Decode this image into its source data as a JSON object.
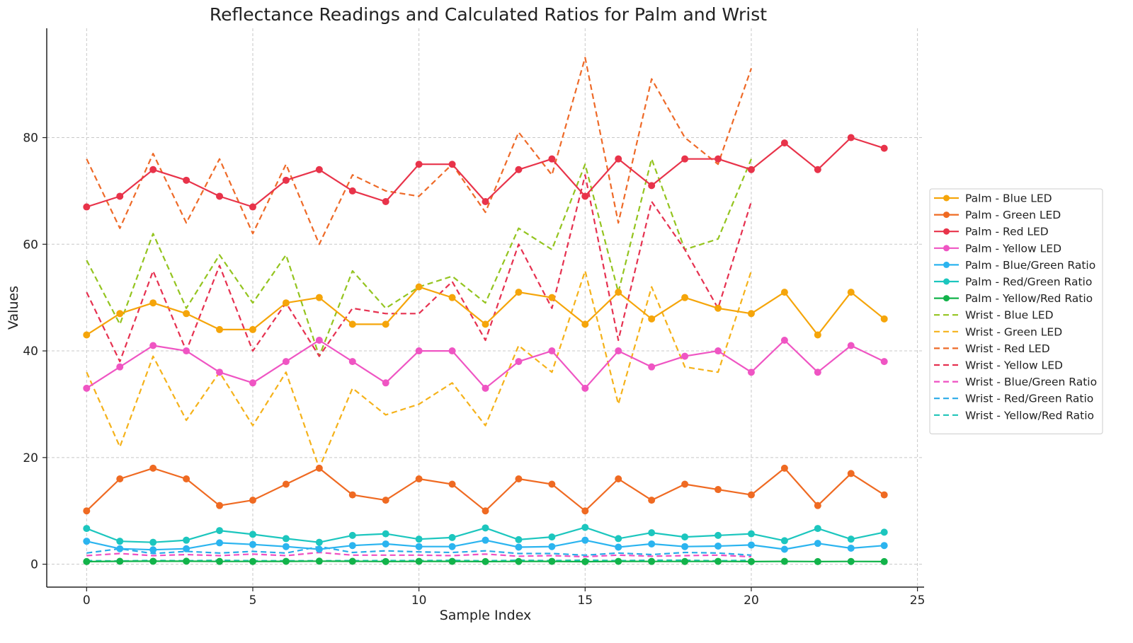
{
  "chart_data": {
    "type": "line",
    "title": "Reflectance Readings and Calculated Ratios for Palm and Wrist",
    "xlabel": "Sample Index",
    "ylabel": "Values",
    "xlim": [
      -1.2,
      25.2
    ],
    "ylim": [
      -4.3,
      100.5
    ],
    "xticks": [
      0,
      5,
      10,
      15,
      20,
      25
    ],
    "yticks": [
      0,
      20,
      40,
      60,
      80
    ],
    "grid": true,
    "legend_position": "right",
    "series": [
      {
        "name": "Palm - Blue LED",
        "style": "solid",
        "marker": true,
        "color": "#f5a50a",
        "values": [
          43,
          47,
          49,
          47,
          44,
          44,
          49,
          50,
          45,
          45,
          52,
          50,
          45,
          51,
          50,
          45,
          51,
          46,
          50,
          48,
          47,
          51,
          43,
          51,
          46
        ]
      },
      {
        "name": "Palm - Green LED",
        "style": "solid",
        "marker": true,
        "color": "#ef6a22",
        "values": [
          10,
          16,
          18,
          16,
          11,
          12,
          15,
          18,
          13,
          12,
          16,
          15,
          10,
          16,
          15,
          10,
          16,
          12,
          15,
          14,
          13,
          18,
          11,
          17,
          13
        ]
      },
      {
        "name": "Palm - Red LED",
        "style": "solid",
        "marker": true,
        "color": "#e8334a",
        "values": [
          67,
          69,
          74,
          72,
          69,
          67,
          72,
          74,
          70,
          68,
          75,
          75,
          68,
          74,
          76,
          69,
          76,
          71,
          76,
          76,
          74,
          79,
          74,
          80,
          78
        ]
      },
      {
        "name": "Palm - Yellow LED",
        "style": "solid",
        "marker": true,
        "color": "#ef55c3",
        "values": [
          33,
          37,
          41,
          40,
          36,
          34,
          38,
          42,
          38,
          34,
          40,
          40,
          33,
          38,
          40,
          33,
          40,
          37,
          39,
          40,
          36,
          42,
          36,
          41,
          38
        ]
      },
      {
        "name": "Palm - Blue/Green Ratio",
        "style": "solid",
        "marker": true,
        "color": "#2bb4ef",
        "values": [
          4.3,
          2.9,
          2.7,
          2.9,
          4.0,
          3.7,
          3.3,
          2.8,
          3.5,
          3.8,
          3.3,
          3.3,
          4.5,
          3.2,
          3.3,
          4.5,
          3.2,
          3.8,
          3.3,
          3.4,
          3.6,
          2.8,
          3.9,
          3.0,
          3.5
        ]
      },
      {
        "name": "Palm - Red/Green Ratio",
        "style": "solid",
        "marker": true,
        "color": "#1cc6be",
        "values": [
          6.7,
          4.3,
          4.1,
          4.5,
          6.3,
          5.6,
          4.8,
          4.1,
          5.4,
          5.7,
          4.7,
          5.0,
          6.8,
          4.6,
          5.1,
          6.9,
          4.8,
          5.9,
          5.1,
          5.4,
          5.7,
          4.4,
          6.7,
          4.7,
          6.0
        ]
      },
      {
        "name": "Palm - Yellow/Red Ratio",
        "style": "solid",
        "marker": true,
        "color": "#12b34a",
        "values": [
          0.49,
          0.54,
          0.55,
          0.56,
          0.52,
          0.51,
          0.53,
          0.57,
          0.54,
          0.5,
          0.53,
          0.53,
          0.49,
          0.51,
          0.53,
          0.48,
          0.53,
          0.52,
          0.51,
          0.53,
          0.49,
          0.53,
          0.49,
          0.51,
          0.49
        ]
      },
      {
        "name": "Wrist - Blue LED",
        "style": "dashed",
        "marker": false,
        "color": "#94c41f",
        "values": [
          57,
          45,
          62,
          48,
          58,
          49,
          58,
          39,
          55,
          48,
          52,
          54,
          49,
          63,
          59,
          75,
          51,
          76,
          59,
          61,
          76
        ]
      },
      {
        "name": "Wrist - Green LED",
        "style": "dashed",
        "marker": false,
        "color": "#f5b21a",
        "values": [
          36,
          22,
          39,
          27,
          36,
          26,
          36,
          18,
          33,
          28,
          30,
          34,
          26,
          41,
          36,
          55,
          30,
          52,
          37,
          36,
          55
        ]
      },
      {
        "name": "Wrist - Red LED",
        "style": "dashed",
        "marker": false,
        "color": "#ee6a28",
        "values": [
          76,
          63,
          77,
          64,
          76,
          62,
          75,
          60,
          73,
          70,
          69,
          75,
          66,
          81,
          73,
          95,
          64,
          91,
          80,
          75,
          93
        ]
      },
      {
        "name": "Wrist - Yellow LED",
        "style": "dashed",
        "marker": false,
        "color": "#e63150",
        "values": [
          51,
          38,
          55,
          40,
          56,
          40,
          49,
          39,
          48,
          47,
          47,
          53,
          42,
          60,
          48,
          73,
          42,
          68,
          59,
          48,
          68
        ]
      },
      {
        "name": "Wrist - Blue/Green Ratio",
        "style": "dashed",
        "marker": false,
        "color": "#ef4fc2",
        "values": [
          1.6,
          2.0,
          1.6,
          1.8,
          1.6,
          1.9,
          1.6,
          2.2,
          1.7,
          1.7,
          1.7,
          1.6,
          1.9,
          1.5,
          1.6,
          1.4,
          1.7,
          1.5,
          1.6,
          1.7,
          1.4
        ]
      },
      {
        "name": "Wrist - Red/Green Ratio",
        "style": "dashed",
        "marker": false,
        "color": "#2aaae8",
        "values": [
          2.1,
          2.9,
          2.0,
          2.4,
          2.1,
          2.4,
          2.1,
          3.3,
          2.2,
          2.5,
          2.3,
          2.2,
          2.5,
          2.0,
          2.0,
          1.7,
          2.1,
          1.8,
          2.2,
          2.1,
          1.7
        ]
      },
      {
        "name": "Wrist - Yellow/Red Ratio",
        "style": "dashed",
        "marker": false,
        "color": "#1ec4b8",
        "values": [
          0.67,
          0.6,
          0.71,
          0.63,
          0.74,
          0.65,
          0.65,
          0.65,
          0.66,
          0.67,
          0.68,
          0.71,
          0.64,
          0.74,
          0.66,
          0.77,
          0.66,
          0.75,
          0.74,
          0.64,
          0.73
        ]
      }
    ]
  }
}
